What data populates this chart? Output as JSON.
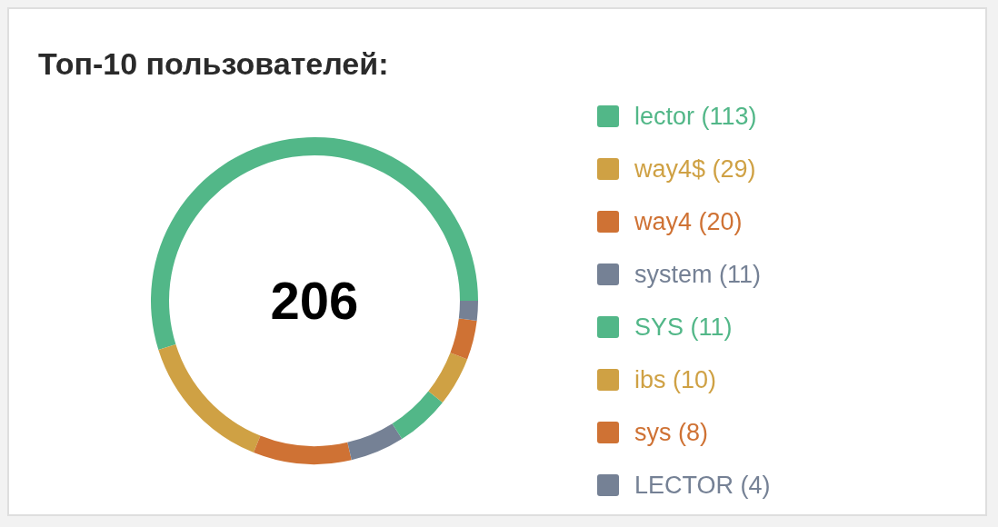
{
  "chart_data": {
    "type": "donut",
    "title": "Топ-10 пользователей:",
    "categories": [
      "lector (113)",
      "way4$ (29)",
      "way4 (20)",
      "system (11)",
      "SYS (11)",
      "ibs (10)",
      "sys (8)",
      "LECTOR (4)"
    ],
    "values": [
      113,
      29,
      20,
      11,
      11,
      10,
      8,
      4
    ],
    "colors": [
      "#52b788",
      "#cfa144",
      "#cf7234",
      "#758195",
      "#52b788",
      "#cfa144",
      "#cf7234",
      "#758195"
    ],
    "legend": "right",
    "annotations": [
      "206"
    ]
  }
}
